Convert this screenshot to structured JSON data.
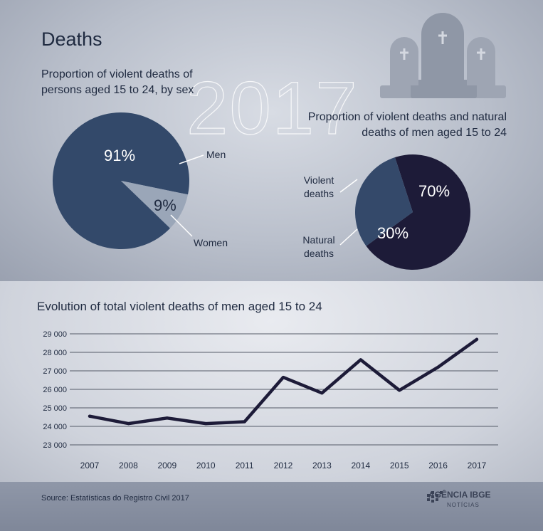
{
  "header": {
    "title": "Deaths",
    "year_watermark": "2017"
  },
  "chart_data": [
    {
      "type": "pie",
      "title": "Proportion of violent deaths of persons aged 15 to 24, by sex",
      "slices": [
        {
          "label": "Men",
          "value": 91,
          "value_label": "91%",
          "color": "#33496a"
        },
        {
          "label": "Women",
          "value": 9,
          "value_label": "9%",
          "color": "#9aa6b8"
        }
      ]
    },
    {
      "type": "pie",
      "title": "Proportion of violent deaths and natural deaths of men aged 15 to 24",
      "slices": [
        {
          "label": "Violent deaths",
          "value": 70,
          "value_label": "70%",
          "color": "#1d1b38"
        },
        {
          "label": "Natural deaths",
          "value": 30,
          "value_label": "30%",
          "color": "#34496a"
        }
      ]
    },
    {
      "type": "line",
      "title": "Evolution of total violent deaths of men aged 15 to 24",
      "x": [
        "2007",
        "2008",
        "2009",
        "2010",
        "2011",
        "2012",
        "2013",
        "2014",
        "2015",
        "2016",
        "2017"
      ],
      "series": [
        {
          "values": [
            24550,
            24150,
            24450,
            24150,
            24250,
            26650,
            25800,
            27600,
            25950,
            27200,
            28700
          ],
          "color": "#1d1b38"
        }
      ],
      "ylim": [
        23000,
        29000
      ],
      "yticks": [
        23000,
        24000,
        25000,
        26000,
        27000,
        28000,
        29000
      ],
      "ytick_labels": [
        "23 000",
        "24 000",
        "25 000",
        "26 000",
        "27 000",
        "28 000",
        "29 000"
      ],
      "grid": true
    }
  ],
  "footer": {
    "source": "Source: Estatísticas do Registro Civil 2017",
    "logo_main": "AGÊNCIA IBGE",
    "logo_sub": "NOTÍCIAS"
  }
}
